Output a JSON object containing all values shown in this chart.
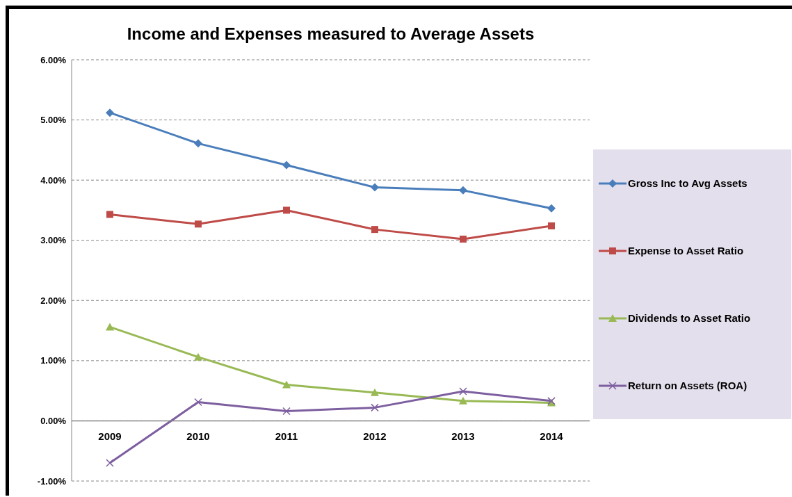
{
  "chart_data": {
    "type": "line",
    "title": "Income and Expenses measured to Average Assets",
    "categories": [
      "2009",
      "2010",
      "2011",
      "2012",
      "2013",
      "2014"
    ],
    "series": [
      {
        "name": "Gross Inc to Avg Assets",
        "color": "#4a7ebb",
        "marker": "diamond",
        "values": [
          5.12,
          4.61,
          4.25,
          3.88,
          3.83,
          3.53
        ]
      },
      {
        "name": "Expense to Asset Ratio",
        "color": "#be4b48",
        "marker": "square",
        "values": [
          3.43,
          3.27,
          3.5,
          3.18,
          3.02,
          3.24
        ]
      },
      {
        "name": "Dividends to Asset Ratio",
        "color": "#98b954",
        "marker": "triangle",
        "values": [
          1.56,
          1.06,
          0.6,
          0.47,
          0.33,
          0.3
        ]
      },
      {
        "name": "Return on Assets (ROA)",
        "color": "#7d5fa0",
        "marker": "cross",
        "values": [
          -0.7,
          0.31,
          0.16,
          0.22,
          0.49,
          0.33
        ]
      }
    ],
    "ylim": [
      -1,
      6
    ],
    "yticks": [
      {
        "value": -1,
        "label": "-1.00%"
      },
      {
        "value": 0,
        "label": "0.00%"
      },
      {
        "value": 1,
        "label": "1.00%"
      },
      {
        "value": 2,
        "label": "2.00%"
      },
      {
        "value": 3,
        "label": "3.00%"
      },
      {
        "value": 4,
        "label": "4.00%"
      },
      {
        "value": 5,
        "label": "5.00%"
      },
      {
        "value": 6,
        "label": "6.00%"
      }
    ],
    "grid": "y",
    "legend": "right",
    "line_style": "solid"
  }
}
